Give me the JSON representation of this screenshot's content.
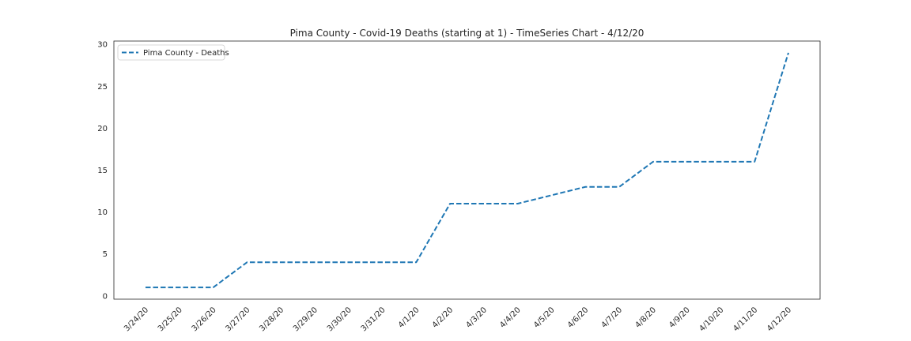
{
  "chart_data": {
    "type": "line",
    "title": "Pima County - Covid-19 Deaths (starting at 1) - TimeSeries Chart - 4/12/20",
    "xlabel": "",
    "ylabel": "",
    "categories": [
      "3/24/20",
      "3/25/20",
      "3/26/20",
      "3/27/20",
      "3/28/20",
      "3/29/20",
      "3/30/20",
      "3/31/20",
      "4/1/20",
      "4/2/20",
      "4/3/20",
      "4/4/20",
      "4/5/20",
      "4/6/20",
      "4/7/20",
      "4/8/20",
      "4/9/20",
      "4/10/20",
      "4/11/20",
      "4/12/20"
    ],
    "series": [
      {
        "name": "Pima County - Deaths",
        "values": [
          1,
          1,
          1,
          4,
          4,
          4,
          4,
          4,
          4,
          11,
          11,
          11,
          12,
          13,
          13,
          16,
          16,
          16,
          16,
          29
        ],
        "color": "#1f77b4",
        "line_style": "dashed"
      }
    ],
    "ylim": [
      -0.4,
      30.4
    ],
    "yticks": [
      0,
      5,
      10,
      15,
      20,
      25,
      30
    ],
    "legend": {
      "position": "top-left"
    },
    "grid": false
  }
}
